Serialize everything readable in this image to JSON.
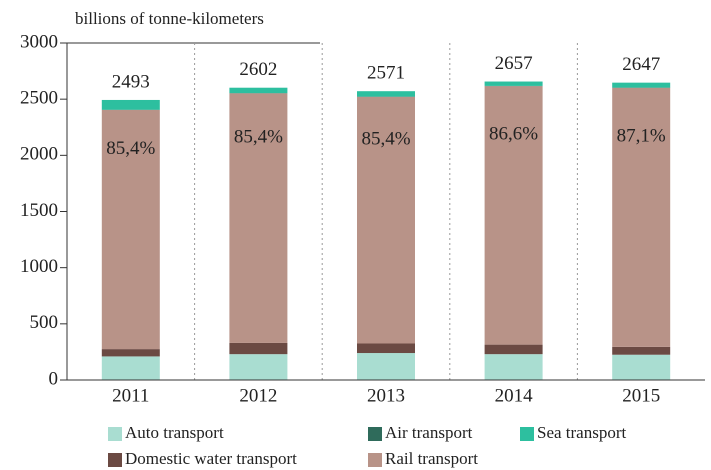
{
  "chart_data": {
    "type": "stacked_bar",
    "y_axis_label": "billions of tonne-kilometers",
    "categories": [
      "2011",
      "2012",
      "2013",
      "2014",
      "2015"
    ],
    "series": [
      {
        "name": "Auto transport",
        "color": "#a9ddd1",
        "values": [
          210,
          230,
          240,
          230,
          225
        ]
      },
      {
        "name": "Domestic water transport",
        "color": "#6b4a43",
        "values": [
          65,
          100,
          85,
          85,
          70
        ]
      },
      {
        "name": "Rail transport",
        "color": "#b89388",
        "values": [
          2129,
          2222,
          2196,
          2301,
          2306
        ],
        "value_labels": [
          "85,4%",
          "85,4%",
          "85,4%",
          "86,6%",
          "87,1%"
        ]
      },
      {
        "name": "Air transport",
        "color": "#2f6b5b",
        "values": [
          2,
          2,
          2,
          2,
          2
        ]
      },
      {
        "name": "Sea transport",
        "color": "#2dbf9f",
        "values": [
          87,
          48,
          48,
          39,
          44
        ]
      }
    ],
    "totals": [
      "2493",
      "2602",
      "2571",
      "2657",
      "2647"
    ],
    "ylim": [
      0,
      3000
    ],
    "yticks": [
      0,
      500,
      1000,
      1500,
      2000,
      2500,
      3000
    ],
    "grid": "vertical-dotted"
  }
}
